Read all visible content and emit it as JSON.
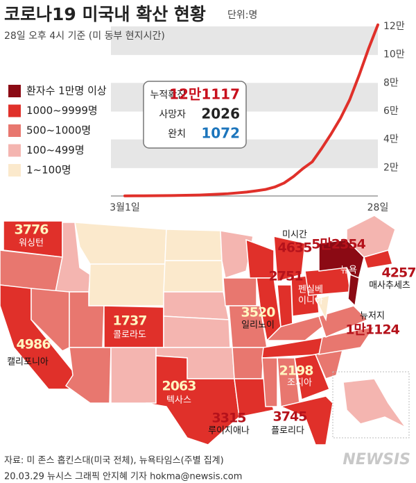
{
  "header": {
    "title": "코로나19 미국내 확산 현황",
    "unit": "단위:명",
    "subtitle": "28일 오후 4시 기준 (미 동부 현지시간)"
  },
  "chart_data": {
    "type": "line",
    "categories": [
      "3월1일",
      null,
      null,
      null,
      null,
      null,
      null,
      null,
      null,
      null,
      null,
      null,
      null,
      null,
      null,
      null,
      null,
      null,
      null,
      null,
      null,
      null,
      null,
      null,
      null,
      null,
      null,
      "28일"
    ],
    "series": [
      {
        "name": "누적확진",
        "color": "#e0302a",
        "values": [
          75,
          100,
          124,
          158,
          221,
          319,
          435,
          541,
          704,
          994,
          1301,
          1630,
          2183,
          2770,
          3613,
          4596,
          6344,
          9197,
          13779,
          19367,
          24192,
          33592,
          43781,
          54856,
          68211,
          85435,
          104126,
          121117
        ]
      }
    ],
    "ylim": [
      0,
      120000
    ],
    "yticks": [
      {
        "value": 20000,
        "label": "2만"
      },
      {
        "value": 40000,
        "label": "4만"
      },
      {
        "value": 60000,
        "label": "6만"
      },
      {
        "value": 80000,
        "label": "8만"
      },
      {
        "value": 100000,
        "label": "10만"
      },
      {
        "value": 120000,
        "label": "12만"
      }
    ],
    "grid": true
  },
  "stats": [
    {
      "label": "누적확진",
      "value": "12만1117",
      "color": "#c8101d"
    },
    {
      "label": "사망자",
      "value": "2026",
      "color": "#222222"
    },
    {
      "label": "완치",
      "value": "1072",
      "color": "#1c75bc"
    }
  ],
  "legend": [
    {
      "label": "환자수 1만명 이상",
      "color": "#8b0a14"
    },
    {
      "label": "1000~9999명",
      "color": "#e0302a"
    },
    {
      "label": "500~1000명",
      "color": "#e8776f"
    },
    {
      "label": "100~499명",
      "color": "#f4b5b0"
    },
    {
      "label": "1~100명",
      "color": "#fbe9cc"
    }
  ],
  "map_labels": [
    {
      "value": "3776",
      "name": [
        "워싱턴"
      ]
    },
    {
      "value": "4986",
      "name": [
        "캘리포니아"
      ]
    },
    {
      "value": "1737",
      "name": [
        "콜로라도"
      ]
    },
    {
      "value": "2063",
      "name": [
        "텍사스"
      ]
    },
    {
      "value": "3315",
      "name": [
        "루이지애나"
      ]
    },
    {
      "value": "3745",
      "name": [
        "플로리다"
      ]
    },
    {
      "value": "2198",
      "name": [
        "조지아"
      ]
    },
    {
      "value": "3520",
      "name": [
        "일리노이"
      ]
    },
    {
      "value": "4635",
      "name": [
        "미시간"
      ]
    },
    {
      "value": "2751",
      "name": []
    },
    {
      "value": "5만2354",
      "name": [
        "뉴욕"
      ]
    },
    {
      "value": "4257",
      "name": [
        "매사추세츠"
      ]
    },
    {
      "value": null,
      "name": [
        "펜실베",
        "이니아"
      ]
    },
    {
      "value": "1만1124",
      "name": [
        "뉴저지"
      ]
    }
  ],
  "footer": {
    "source": "자료: 미 존스 홉킨스대(미국 전체), 뉴욕타임스(주별 집계)",
    "credit": "20.03.29 뉴시스 그래픽 안지혜 기자 hokma@newsis.com",
    "logo": "NEWSIS"
  }
}
